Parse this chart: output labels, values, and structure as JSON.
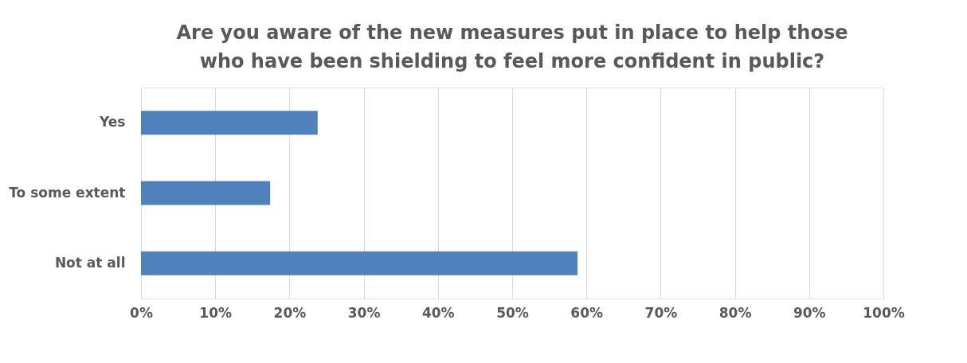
{
  "chart_data": {
    "type": "bar",
    "orientation": "horizontal",
    "title": "Are you aware of the new measures put in place to help those\nwho have been shielding to feel more confident in public?",
    "categories": [
      "Yes",
      "To some extent",
      "Not at all"
    ],
    "values": [
      23.8,
      17.4,
      58.8
    ],
    "color": "#4f81bd",
    "xlim": [
      0,
      100
    ],
    "xticks": [
      {
        "value": 0,
        "label": "0%"
      },
      {
        "value": 10,
        "label": "10%"
      },
      {
        "value": 20,
        "label": "20%"
      },
      {
        "value": 30,
        "label": "30%"
      },
      {
        "value": 40,
        "label": "40%"
      },
      {
        "value": 50,
        "label": "50%"
      },
      {
        "value": 60,
        "label": "60%"
      },
      {
        "value": 70,
        "label": "70%"
      },
      {
        "value": 80,
        "label": "80%"
      },
      {
        "value": 90,
        "label": "90%"
      },
      {
        "value": 100,
        "label": "100%"
      }
    ],
    "grid": "x"
  }
}
